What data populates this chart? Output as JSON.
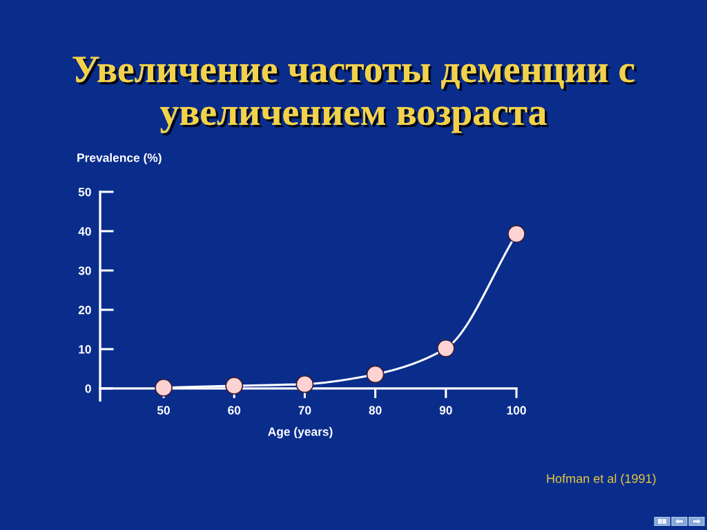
{
  "chart_data": {
    "type": "line",
    "title": "Увеличение частоты деменции с\nувеличением возраста",
    "xlabel": "Age (years)",
    "ylabel": "Prevalence (%)",
    "x": [
      50,
      60,
      70,
      80,
      90,
      100
    ],
    "series": [
      {
        "color": "#ffffff",
        "colors": [
          "#fcd2d2",
          "#fcd2d2",
          "#fcd2d2",
          "#fcd2d2",
          "#fcd2d2",
          "#fcd2d2"
        ],
        "values": [
          0.2,
          0.7,
          1.1,
          3.6,
          10.2,
          39.3
        ]
      }
    ],
    "marker": "circle",
    "line_style": "solid",
    "xlim": [
      41,
      100
    ],
    "ylim": [
      -3,
      50
    ],
    "xticks": [
      50,
      60,
      70,
      80,
      90,
      100
    ],
    "yticks": [
      0,
      10,
      20,
      30,
      40,
      50
    ],
    "annotations": [
      "Hofman et al (1991)"
    ]
  }
}
